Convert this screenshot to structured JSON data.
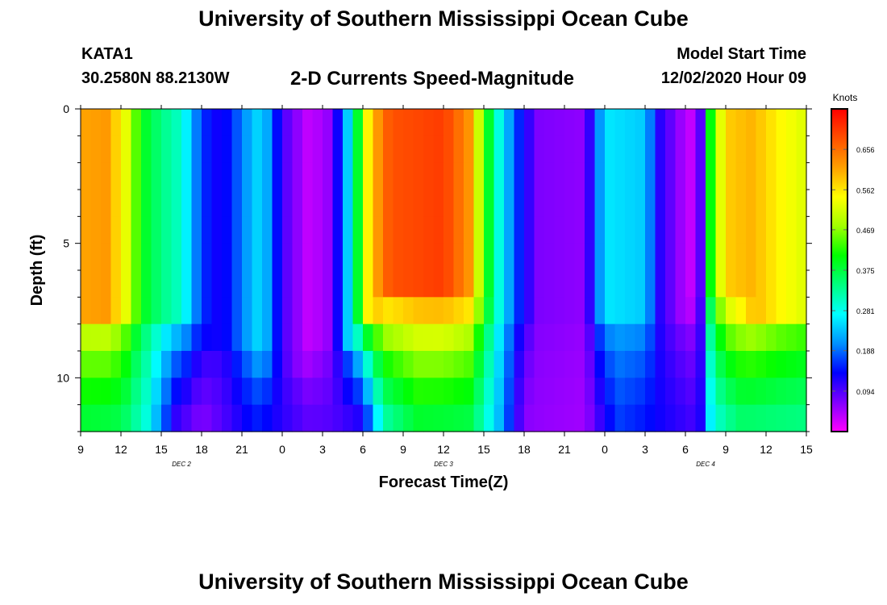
{
  "header": {
    "title": "University of Southern Mississippi Ocean Cube",
    "station": "KATA1",
    "coordinates": "30.2580N 88.2130W",
    "chart_title": "2-D Currents Speed-Magnitude",
    "model_start_label": "Model Start Time",
    "model_start_value": "12/02/2020 Hour 09"
  },
  "footer": {
    "title": "University of Southern Mississippi Ocean Cube"
  },
  "chart_data": {
    "type": "heatmap",
    "title": "2-D Currents Speed-Magnitude",
    "xlabel": "Forecast Time(Z)",
    "ylabel": "Depth (ft)",
    "x_hours_from_start": [
      0,
      54
    ],
    "x_tick_labels": [
      "9",
      "12",
      "15",
      "18",
      "21",
      "0",
      "3",
      "6",
      "9",
      "12",
      "15",
      "18",
      "21",
      "0",
      "3",
      "6",
      "9",
      "12",
      "15"
    ],
    "x_day_labels": [
      {
        "label": "DEC 2",
        "at_hour": 7.5
      },
      {
        "label": "DEC 3",
        "at_hour": 27
      },
      {
        "label": "DEC 4",
        "at_hour": 46.5
      }
    ],
    "y_range_ft": [
      0,
      12
    ],
    "y_tick_labels": [
      "0",
      "5",
      "10"
    ],
    "y_tick_values": [
      0,
      5,
      10
    ],
    "colorbar": {
      "label": "Knots",
      "range": [
        0,
        0.75
      ],
      "tick_values": [
        0.094,
        0.188,
        0.281,
        0.375,
        0.469,
        0.562,
        0.656
      ],
      "tick_labels": [
        "0.094",
        "0.188",
        "0.281",
        "0.375",
        "0.469",
        "0.562",
        "0.656"
      ],
      "colormap": [
        "#ff00ff",
        "#8000ff",
        "#0000ff",
        "#0090ff",
        "#00ffff",
        "#00ff80",
        "#00ff00",
        "#a0ff00",
        "#ffff00",
        "#ffa000",
        "#ff5000",
        "#ff0000"
      ]
    },
    "depth_levels_ft": [
      0,
      1,
      2,
      3,
      4,
      5,
      6,
      7,
      8,
      9,
      10,
      11,
      12
    ],
    "surface_speed_profile_knots": [
      {
        "hour": 0,
        "value": 0.61
      },
      {
        "hour": 2,
        "value": 0.62
      },
      {
        "hour": 3.5,
        "value": 0.52
      },
      {
        "hour": 4.5,
        "value": 0.4
      },
      {
        "hour": 6,
        "value": 0.34
      },
      {
        "hour": 7.5,
        "value": 0.3
      },
      {
        "hour": 9,
        "value": 0.16
      },
      {
        "hour": 10.5,
        "value": 0.12
      },
      {
        "hour": 12.5,
        "value": 0.22
      },
      {
        "hour": 13.5,
        "value": 0.26
      },
      {
        "hour": 15,
        "value": 0.1
      },
      {
        "hour": 17,
        "value": 0.03
      },
      {
        "hour": 18.5,
        "value": 0.06
      },
      {
        "hour": 19.5,
        "value": 0.17
      },
      {
        "hour": 20.5,
        "value": 0.36
      },
      {
        "hour": 21.5,
        "value": 0.58
      },
      {
        "hour": 23,
        "value": 0.68
      },
      {
        "hour": 27,
        "value": 0.7
      },
      {
        "hour": 29,
        "value": 0.62
      },
      {
        "hour": 30,
        "value": 0.44
      },
      {
        "hour": 31,
        "value": 0.3
      },
      {
        "hour": 32.5,
        "value": 0.16
      },
      {
        "hour": 34,
        "value": 0.07
      },
      {
        "hour": 37.5,
        "value": 0.06
      },
      {
        "hour": 39,
        "value": 0.26
      },
      {
        "hour": 42,
        "value": 0.24
      },
      {
        "hour": 43,
        "value": 0.12
      },
      {
        "hour": 44,
        "value": 0.08
      },
      {
        "hour": 45,
        "value": 0.04
      },
      {
        "hour": 46,
        "value": 0.02
      },
      {
        "hour": 46.5,
        "value": 0.3
      },
      {
        "hour": 47,
        "value": 0.44
      },
      {
        "hour": 48,
        "value": 0.58
      },
      {
        "hour": 50,
        "value": 0.6
      },
      {
        "hour": 52,
        "value": 0.55
      },
      {
        "hour": 54,
        "value": 0.52
      }
    ],
    "deep_speed_profile_knots": [
      {
        "hour": 0,
        "value": 0.37
      },
      {
        "hour": 3,
        "value": 0.36
      },
      {
        "hour": 5,
        "value": 0.28
      },
      {
        "hour": 7,
        "value": 0.1
      },
      {
        "hour": 9,
        "value": 0.06
      },
      {
        "hour": 13,
        "value": 0.14
      },
      {
        "hour": 17,
        "value": 0.09
      },
      {
        "hour": 21,
        "value": 0.1
      },
      {
        "hour": 22.5,
        "value": 0.3
      },
      {
        "hour": 25,
        "value": 0.37
      },
      {
        "hour": 29,
        "value": 0.36
      },
      {
        "hour": 31,
        "value": 0.24
      },
      {
        "hour": 33,
        "value": 0.06
      },
      {
        "hour": 37.5,
        "value": 0.05
      },
      {
        "hour": 40,
        "value": 0.16
      },
      {
        "hour": 44,
        "value": 0.12
      },
      {
        "hour": 46,
        "value": 0.1
      },
      {
        "hour": 47,
        "value": 0.28
      },
      {
        "hour": 49,
        "value": 0.34
      },
      {
        "hour": 54,
        "value": 0.33
      }
    ],
    "surface_layer_depth_ft": [
      {
        "hour": 0,
        "value": 7.5
      },
      {
        "hour": 4,
        "value": 7.5
      },
      {
        "hour": 8,
        "value": 8
      },
      {
        "hour": 12,
        "value": 9
      },
      {
        "hour": 16,
        "value": 9.5
      },
      {
        "hour": 20,
        "value": 8.5
      },
      {
        "hour": 23,
        "value": 7
      },
      {
        "hour": 27,
        "value": 7
      },
      {
        "hour": 31,
        "value": 7.5
      },
      {
        "hour": 35,
        "value": 8
      },
      {
        "hour": 40,
        "value": 7.5
      },
      {
        "hour": 44,
        "value": 8
      },
      {
        "hour": 46.5,
        "value": 7
      },
      {
        "hour": 50,
        "value": 7.5
      },
      {
        "hour": 54,
        "value": 7.5
      }
    ]
  }
}
